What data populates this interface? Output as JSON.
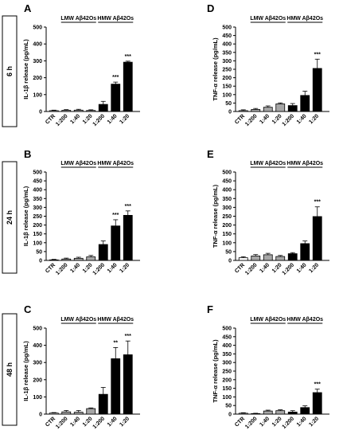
{
  "colors": {
    "hmw_bar": "#000000",
    "lmw_bar": "#a6a6a6",
    "ctr_bar": "#ffffff",
    "axis": "#000000"
  },
  "time_labels": [
    "6 h",
    "24 h",
    "48 h"
  ],
  "chart_data": [
    {
      "panel": "A",
      "type": "bar",
      "ylabel": "IL-1β release (pg/mL)",
      "ylim": [
        0,
        500
      ],
      "yticks": [
        0,
        100,
        200,
        300,
        400,
        500
      ],
      "categories": [
        "CTR",
        "1:200",
        "1:40",
        "1:20",
        "1:200",
        "1:40",
        "1:20"
      ],
      "groups": [
        "CTR",
        "LMW",
        "LMW",
        "LMW",
        "HMW",
        "HMW",
        "HMW"
      ],
      "values": [
        5,
        7,
        8,
        6,
        42,
        162,
        292
      ],
      "errors": [
        3,
        4,
        5,
        4,
        18,
        12,
        6
      ],
      "significance": [
        "",
        "",
        "",
        "",
        "",
        "***",
        "***"
      ],
      "group_labels": {
        "lmw": "LMW Aβ42Os",
        "hmw": "HMW Aβ42Os"
      }
    },
    {
      "panel": "B",
      "type": "bar",
      "ylabel": "IL-1β release (pg/mL)",
      "ylim": [
        0,
        500
      ],
      "yticks": [
        0,
        50,
        100,
        150,
        200,
        250,
        300,
        350,
        400,
        450,
        500
      ],
      "categories": [
        "CTR",
        "1:200",
        "1:40",
        "1:20",
        "1:200",
        "1:40",
        "1:20"
      ],
      "groups": [
        "CTR",
        "LMW",
        "LMW",
        "LMW",
        "HMW",
        "HMW",
        "HMW"
      ],
      "values": [
        3,
        8,
        12,
        20,
        90,
        195,
        255
      ],
      "errors": [
        3,
        5,
        6,
        8,
        20,
        35,
        25
      ],
      "significance": [
        "",
        "",
        "",
        "",
        "",
        "***",
        "***"
      ],
      "group_labels": {
        "lmw": "LMW Aβ42Os",
        "hmw": "HMW Aβ42Os"
      }
    },
    {
      "panel": "C",
      "type": "bar",
      "ylabel": "IL-1β release (pg/mL)",
      "ylim": [
        0,
        500
      ],
      "yticks": [
        0,
        100,
        200,
        300,
        400,
        500
      ],
      "categories": [
        "CTR",
        "1:200",
        "1:40",
        "1:20",
        "1:200",
        "1:40",
        "1:20"
      ],
      "groups": [
        "CTR",
        "LMW",
        "LMW",
        "LMW",
        "HMW",
        "HMW",
        "HMW"
      ],
      "values": [
        6,
        13,
        11,
        32,
        115,
        322,
        345
      ],
      "errors": [
        3,
        8,
        10,
        4,
        40,
        65,
        80
      ],
      "significance": [
        "",
        "",
        "",
        "",
        "",
        "**",
        "***"
      ],
      "group_labels": {
        "lmw": "LMW Aβ42Os",
        "hmw": "HMW Aβ42Os"
      }
    },
    {
      "panel": "D",
      "type": "bar",
      "ylabel": "TNF-α release (pg/mL)",
      "ylim": [
        0,
        500
      ],
      "yticks": [
        0,
        50,
        100,
        150,
        200,
        250,
        300,
        350,
        400,
        450,
        500
      ],
      "categories": [
        "CTR",
        "1:200",
        "1:40",
        "1:20",
        "1:200",
        "1:40",
        "1:20"
      ],
      "groups": [
        "CTR",
        "LMW",
        "LMW",
        "LMW",
        "HMW",
        "HMW",
        "HMW"
      ],
      "values": [
        5,
        12,
        25,
        45,
        35,
        95,
        255
      ],
      "errors": [
        5,
        6,
        8,
        6,
        12,
        25,
        55
      ],
      "significance": [
        "",
        "",
        "",
        "",
        "",
        "",
        "***"
      ],
      "group_labels": {
        "lmw": "LMW Aβ42Os",
        "hmw": "HMW Aβ42Os"
      }
    },
    {
      "panel": "E",
      "type": "bar",
      "ylabel": "TNF-α release (pg/mL)",
      "ylim": [
        0,
        500
      ],
      "yticks": [
        0,
        50,
        100,
        150,
        200,
        250,
        300,
        350,
        400,
        450,
        500
      ],
      "categories": [
        "CTR",
        "1:200",
        "1:40",
        "1:20",
        "1:200",
        "1:40",
        "1:20"
      ],
      "groups": [
        "CTR",
        "LMW",
        "LMW",
        "LMW",
        "HMW",
        "HMW",
        "HMW"
      ],
      "values": [
        15,
        25,
        32,
        22,
        38,
        95,
        248
      ],
      "errors": [
        6,
        8,
        8,
        6,
        6,
        15,
        55
      ],
      "significance": [
        "",
        "",
        "",
        "",
        "",
        "",
        "***"
      ],
      "group_labels": {
        "lmw": "LMW Aβ42Os",
        "hmw": "HMW Aβ42Os"
      }
    },
    {
      "panel": "F",
      "type": "bar",
      "ylabel": "TNF-α release (pg/mL)",
      "ylim": [
        0,
        500
      ],
      "yticks": [
        0,
        50,
        100,
        150,
        200,
        250,
        300,
        350,
        400,
        450,
        500
      ],
      "categories": [
        "CTR",
        "1:200",
        "1:40",
        "1:20",
        "1:200",
        "1:40",
        "1:20"
      ],
      "groups": [
        "CTR",
        "LMW",
        "LMW",
        "LMW",
        "HMW",
        "HMW",
        "HMW"
      ],
      "values": [
        5,
        3,
        18,
        20,
        12,
        38,
        125
      ],
      "errors": [
        3,
        2,
        5,
        5,
        8,
        10,
        20
      ],
      "significance": [
        "",
        "",
        "",
        "",
        "",
        "",
        "***"
      ],
      "group_labels": {
        "lmw": "LMW Aβ42Os",
        "hmw": "HMW Aβ42Os"
      }
    }
  ]
}
